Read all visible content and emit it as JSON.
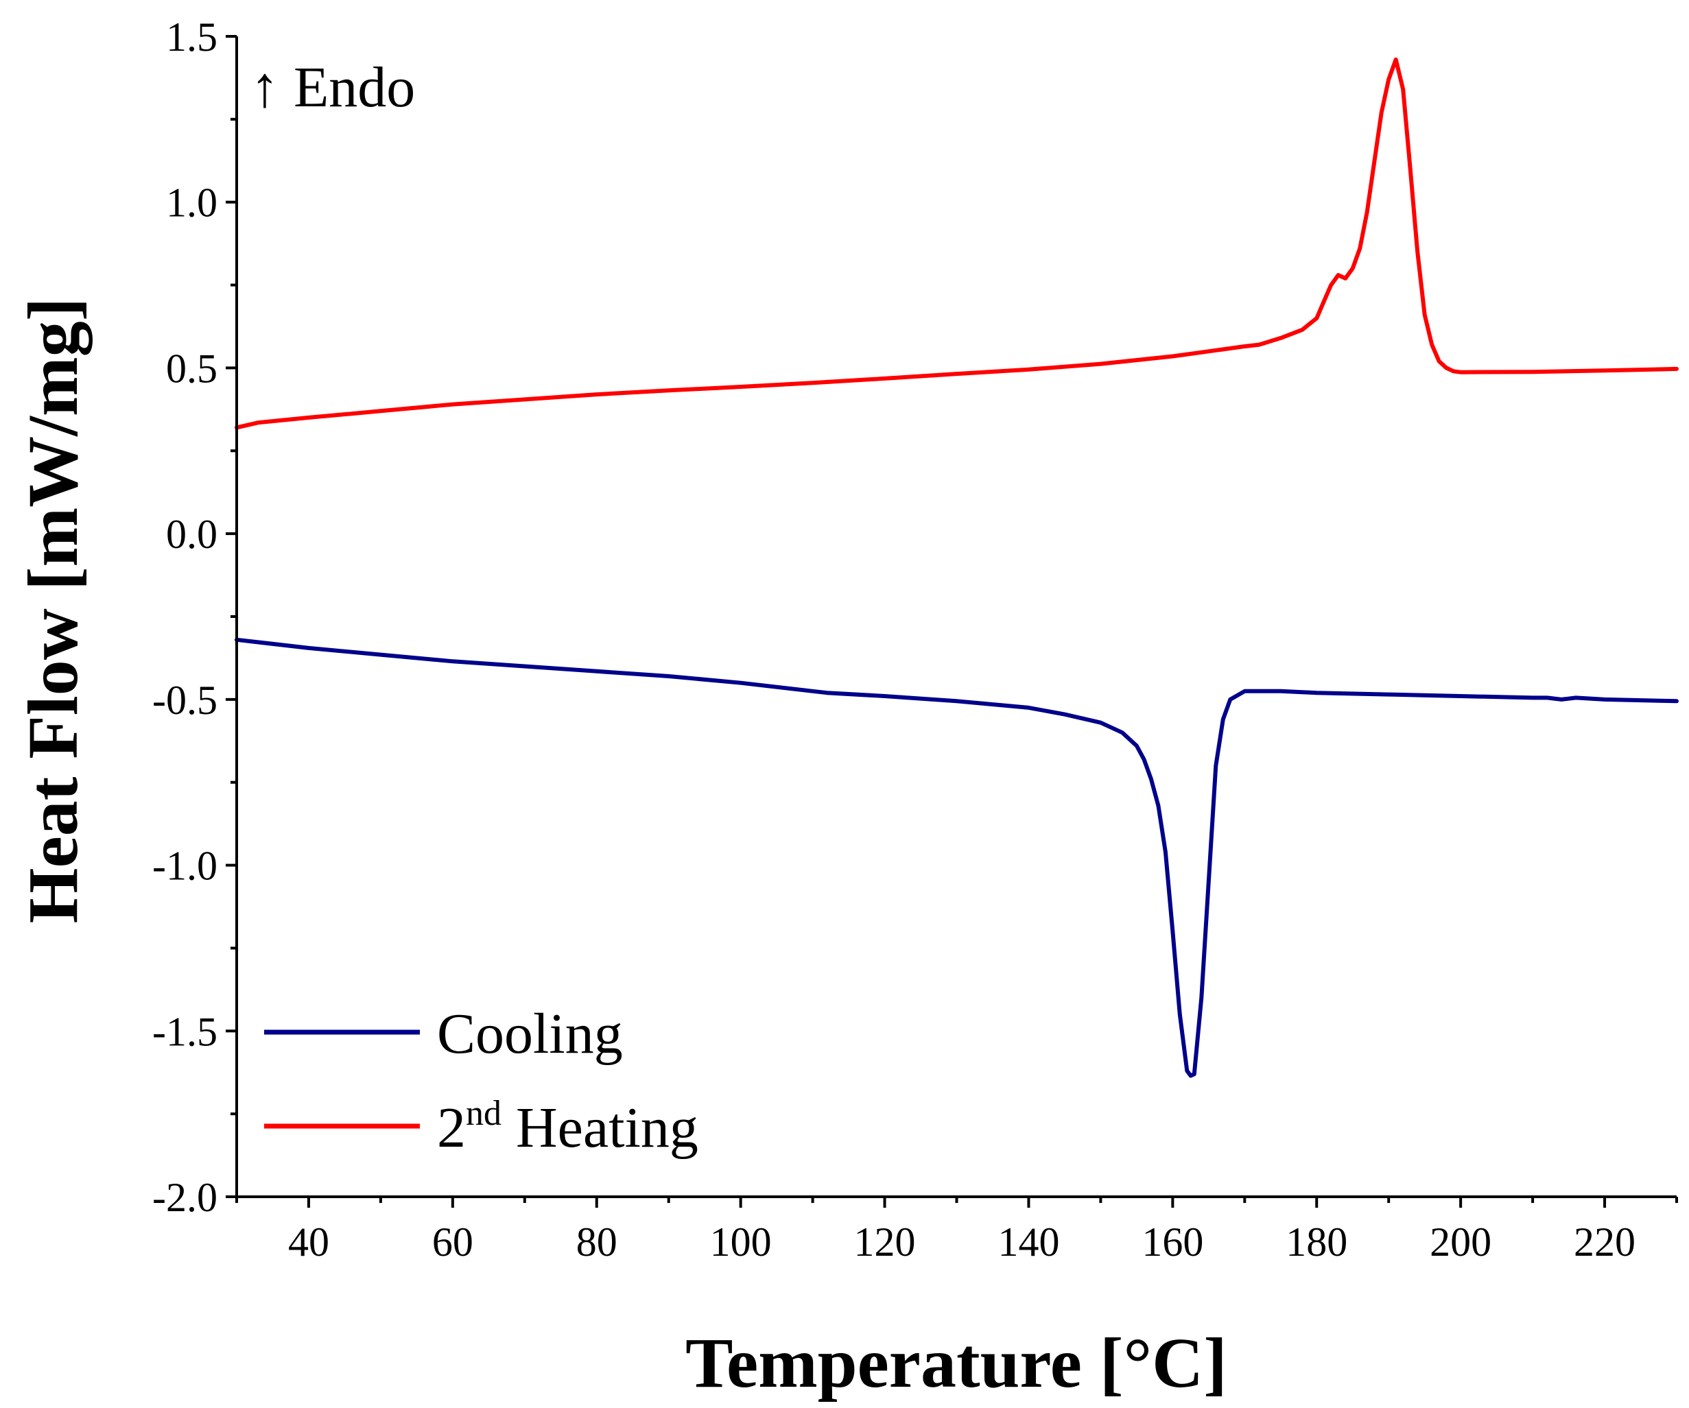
{
  "chart_data": {
    "type": "line",
    "title": "",
    "xlabel": "Temperature [°C]",
    "ylabel": "Heat Flow [mW/mg]",
    "xlim": [
      30,
      230
    ],
    "ylim": [
      -2.0,
      1.5
    ],
    "xticks": [
      40,
      60,
      80,
      100,
      120,
      140,
      160,
      180,
      200,
      220
    ],
    "xtick_labels": [
      "40",
      "60",
      "80",
      "100",
      "120",
      "140",
      "160",
      "180",
      "200",
      "220"
    ],
    "yticks": [
      -2.0,
      -1.5,
      -1.0,
      -0.5,
      0.0,
      0.5,
      1.0,
      1.5
    ],
    "ytick_labels": [
      "-2.0",
      "-1.5",
      "-1.0",
      "-0.5",
      "0.0",
      "0.5",
      "1.0",
      "1.5"
    ],
    "grid": false,
    "legend_position": "bottom-left",
    "annotation": "↑ Endo",
    "series": [
      {
        "name": "Cooling",
        "color": "#00008b",
        "x": [
          30,
          40,
          50,
          60,
          70,
          80,
          90,
          100,
          110,
          112,
          120,
          130,
          140,
          145,
          150,
          153,
          155,
          156,
          157,
          158,
          159,
          160,
          161,
          162,
          162.5,
          163,
          164,
          165,
          166,
          167,
          168,
          170,
          175,
          180,
          190,
          200,
          210,
          212,
          214,
          216,
          220,
          230
        ],
        "values": [
          -0.32,
          -0.345,
          -0.365,
          -0.385,
          -0.4,
          -0.415,
          -0.43,
          -0.45,
          -0.475,
          -0.48,
          -0.49,
          -0.505,
          -0.525,
          -0.545,
          -0.57,
          -0.6,
          -0.64,
          -0.68,
          -0.74,
          -0.82,
          -0.96,
          -1.2,
          -1.45,
          -1.62,
          -1.635,
          -1.63,
          -1.4,
          -1.05,
          -0.7,
          -0.56,
          -0.5,
          -0.475,
          -0.475,
          -0.48,
          -0.485,
          -0.49,
          -0.495,
          -0.495,
          -0.5,
          -0.495,
          -0.5,
          -0.505
        ]
      },
      {
        "name": "2nd Heating",
        "color": "#ff0000",
        "x": [
          30,
          33,
          40,
          50,
          60,
          70,
          80,
          90,
          100,
          110,
          120,
          130,
          140,
          150,
          160,
          165,
          170,
          172,
          175,
          178,
          180,
          181,
          182,
          183,
          184,
          185,
          186,
          187,
          188,
          189,
          190,
          191,
          192,
          193,
          194,
          195,
          196,
          197,
          198,
          199,
          200,
          210,
          220,
          230
        ],
        "values": [
          0.32,
          0.335,
          0.35,
          0.37,
          0.39,
          0.405,
          0.42,
          0.432,
          0.443,
          0.455,
          0.468,
          0.482,
          0.495,
          0.512,
          0.535,
          0.55,
          0.565,
          0.57,
          0.59,
          0.615,
          0.65,
          0.7,
          0.75,
          0.78,
          0.77,
          0.8,
          0.86,
          0.97,
          1.12,
          1.27,
          1.37,
          1.43,
          1.34,
          1.1,
          0.85,
          0.66,
          0.57,
          0.52,
          0.5,
          0.49,
          0.487,
          0.488,
          0.492,
          0.497
        ]
      }
    ]
  }
}
